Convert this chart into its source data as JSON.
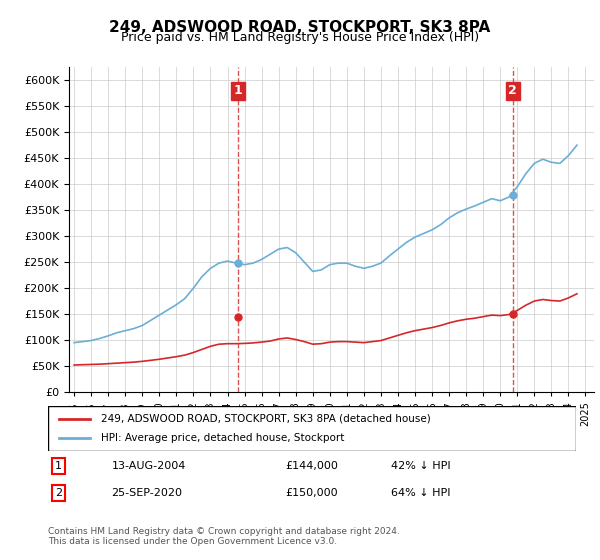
{
  "title": "249, ADSWOOD ROAD, STOCKPORT, SK3 8PA",
  "subtitle": "Price paid vs. HM Land Registry's House Price Index (HPI)",
  "ylim": [
    0,
    625000
  ],
  "yticks": [
    0,
    50000,
    100000,
    150000,
    200000,
    250000,
    300000,
    350000,
    400000,
    450000,
    500000,
    550000,
    600000
  ],
  "xlim_start": 1995.0,
  "xlim_end": 2025.5,
  "hpi_color": "#6baed6",
  "price_color": "#d62728",
  "dashed_color": "#d62728",
  "background_color": "#ffffff",
  "grid_color": "#cccccc",
  "legend_label_red": "249, ADSWOOD ROAD, STOCKPORT, SK3 8PA (detached house)",
  "legend_label_blue": "HPI: Average price, detached house, Stockport",
  "sale1_date": 2004.617,
  "sale1_price": 144000,
  "sale1_label": "1",
  "sale1_hpi_pct": "42%",
  "sale2_date": 2020.733,
  "sale2_price": 150000,
  "sale2_label": "2",
  "sale2_hpi_pct": "64%",
  "footnote": "Contains HM Land Registry data © Crown copyright and database right 2024.\nThis data is licensed under the Open Government Licence v3.0.",
  "table_row1": [
    "1",
    "13-AUG-2004",
    "£144,000",
    "42% ↓ HPI"
  ],
  "table_row2": [
    "2",
    "25-SEP-2020",
    "£150,000",
    "64% ↓ HPI"
  ],
  "hpi_data": {
    "years": [
      1995.0,
      1995.5,
      1996.0,
      1996.5,
      1997.0,
      1997.5,
      1998.0,
      1998.5,
      1999.0,
      1999.5,
      2000.0,
      2000.5,
      2001.0,
      2001.5,
      2002.0,
      2002.5,
      2003.0,
      2003.5,
      2004.0,
      2004.5,
      2005.0,
      2005.5,
      2006.0,
      2006.5,
      2007.0,
      2007.5,
      2008.0,
      2008.5,
      2009.0,
      2009.5,
      2010.0,
      2010.5,
      2011.0,
      2011.5,
      2012.0,
      2012.5,
      2013.0,
      2013.5,
      2014.0,
      2014.5,
      2015.0,
      2015.5,
      2016.0,
      2016.5,
      2017.0,
      2017.5,
      2018.0,
      2018.5,
      2019.0,
      2019.5,
      2020.0,
      2020.5,
      2021.0,
      2021.5,
      2022.0,
      2022.5,
      2023.0,
      2023.5,
      2024.0,
      2024.5
    ],
    "values": [
      95000,
      97000,
      99000,
      103000,
      108000,
      114000,
      118000,
      122000,
      128000,
      138000,
      148000,
      158000,
      168000,
      180000,
      200000,
      222000,
      238000,
      248000,
      252000,
      248000,
      245000,
      248000,
      255000,
      265000,
      275000,
      278000,
      268000,
      250000,
      232000,
      235000,
      245000,
      248000,
      248000,
      242000,
      238000,
      242000,
      248000,
      262000,
      275000,
      288000,
      298000,
      305000,
      312000,
      322000,
      335000,
      345000,
      352000,
      358000,
      365000,
      372000,
      368000,
      375000,
      395000,
      420000,
      440000,
      448000,
      442000,
      440000,
      455000,
      475000
    ]
  },
  "price_data": {
    "years": [
      1995.0,
      1995.5,
      1996.0,
      1996.5,
      1997.0,
      1997.5,
      1998.0,
      1998.5,
      1999.0,
      1999.5,
      2000.0,
      2000.5,
      2001.0,
      2001.5,
      2002.0,
      2002.5,
      2003.0,
      2003.5,
      2004.0,
      2004.5,
      2005.0,
      2005.5,
      2006.0,
      2006.5,
      2007.0,
      2007.5,
      2008.0,
      2008.5,
      2009.0,
      2009.5,
      2010.0,
      2010.5,
      2011.0,
      2011.5,
      2012.0,
      2012.5,
      2013.0,
      2013.5,
      2014.0,
      2014.5,
      2015.0,
      2015.5,
      2016.0,
      2016.5,
      2017.0,
      2017.5,
      2018.0,
      2018.5,
      2019.0,
      2019.5,
      2020.0,
      2020.5,
      2021.0,
      2021.5,
      2022.0,
      2022.5,
      2023.0,
      2023.5,
      2024.0,
      2024.5
    ],
    "values": [
      52000,
      52500,
      53000,
      53500,
      54500,
      55500,
      56500,
      57500,
      59000,
      61000,
      63000,
      65500,
      68000,
      71000,
      76000,
      82000,
      88000,
      92000,
      93000,
      93000,
      93500,
      94500,
      96000,
      98000,
      102000,
      104000,
      101000,
      97000,
      92000,
      93000,
      96000,
      97000,
      97000,
      96000,
      95000,
      97000,
      99000,
      104000,
      109000,
      114000,
      118000,
      121000,
      124000,
      128000,
      133000,
      137000,
      140000,
      142000,
      145000,
      148000,
      147000,
      149000,
      157000,
      167000,
      175000,
      178000,
      176000,
      175000,
      181000,
      189000
    ]
  }
}
